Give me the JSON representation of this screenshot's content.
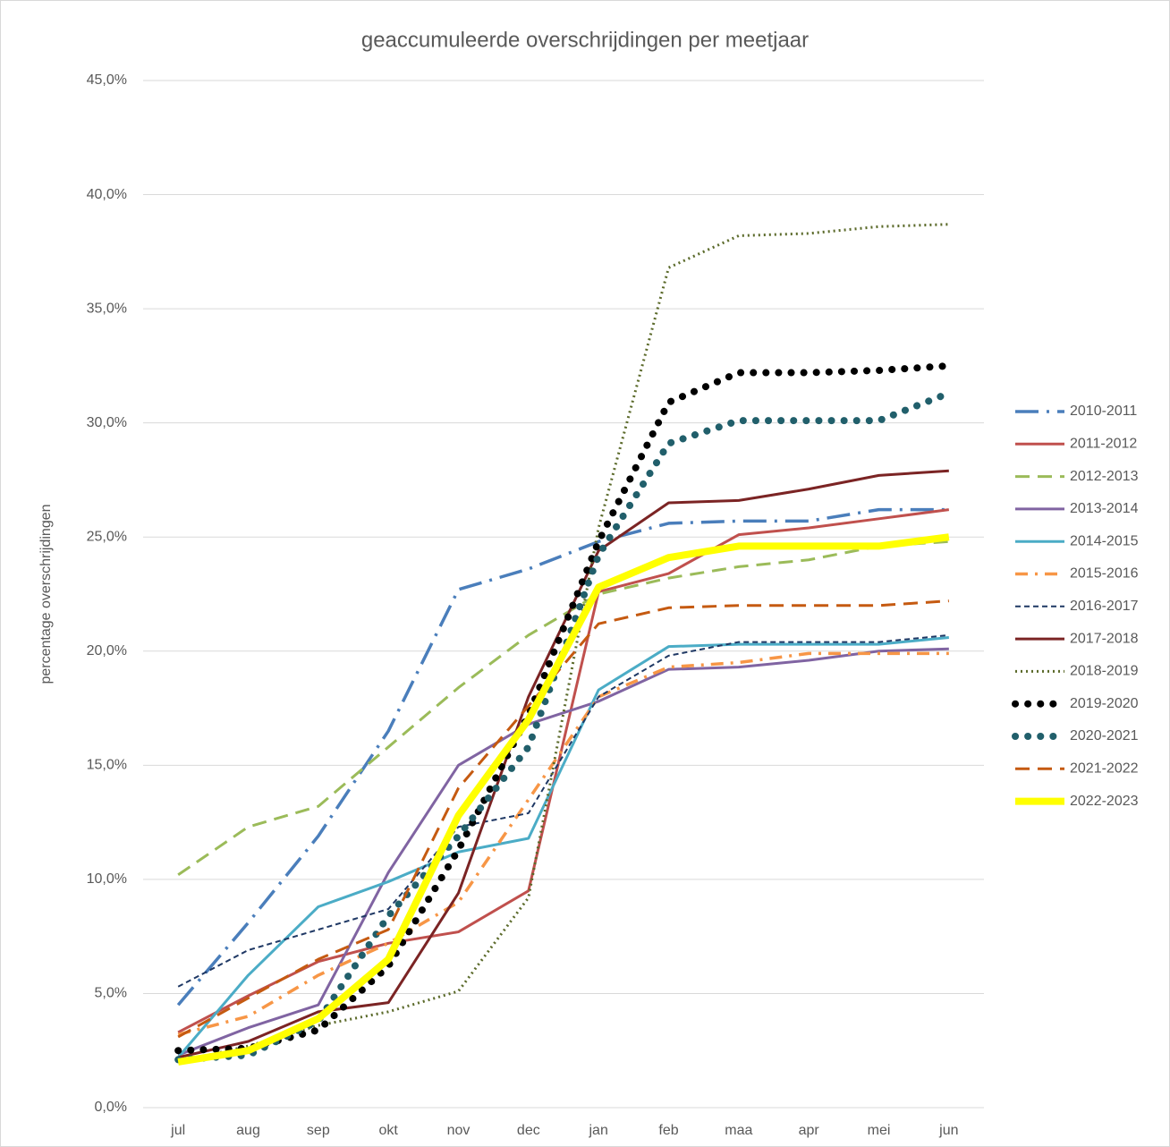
{
  "chart_data": {
    "type": "line",
    "title": "geaccumuleerde overschrijdingen per meetjaar",
    "y_label": "percentage overschrijdingen",
    "categories": [
      "jul",
      "aug",
      "sep",
      "okt",
      "nov",
      "dec",
      "jan",
      "feb",
      "maa",
      "apr",
      "mei",
      "jun"
    ],
    "ylim": [
      0,
      45
    ],
    "yticks": [
      {
        "value": 0,
        "label": "0,0%"
      },
      {
        "value": 5,
        "label": "5,0%"
      },
      {
        "value": 10,
        "label": "10,0%"
      },
      {
        "value": 15,
        "label": "15,0%"
      },
      {
        "value": 20,
        "label": "20,0%"
      },
      {
        "value": 25,
        "label": "25,0%"
      },
      {
        "value": 30,
        "label": "30,0%"
      },
      {
        "value": 35,
        "label": "35,0%"
      },
      {
        "value": 40,
        "label": "40,0%"
      },
      {
        "value": 45,
        "label": "45,0%"
      }
    ],
    "grid": true,
    "legend": "right",
    "series": [
      {
        "name": "2010-2011",
        "color": "#4a7ebb",
        "style": "longdashdot",
        "values": [
          4.5,
          8.1,
          11.9,
          16.5,
          22.7,
          23.6,
          24.8,
          25.6,
          25.7,
          25.7,
          26.2,
          26.2
        ]
      },
      {
        "name": "2011-2012",
        "color": "#c0504d",
        "style": "solid",
        "values": [
          3.3,
          4.9,
          6.4,
          7.2,
          7.7,
          9.5,
          22.6,
          23.4,
          25.1,
          25.4,
          25.8,
          26.2
        ]
      },
      {
        "name": "2012-2013",
        "color": "#9bbb59",
        "style": "dash",
        "values": [
          10.2,
          12.3,
          13.2,
          15.8,
          18.4,
          20.7,
          22.5,
          23.2,
          23.7,
          24.0,
          24.6,
          24.8
        ]
      },
      {
        "name": "2013-2014",
        "color": "#8064a2",
        "style": "solid",
        "values": [
          2.3,
          3.5,
          4.5,
          10.3,
          15.0,
          16.8,
          17.8,
          19.2,
          19.3,
          19.6,
          20.0,
          20.1
        ]
      },
      {
        "name": "2014-2015",
        "color": "#4bacc6",
        "style": "solid",
        "values": [
          2.2,
          5.8,
          8.8,
          9.9,
          11.2,
          11.8,
          18.3,
          20.2,
          20.3,
          20.3,
          20.3,
          20.6
        ]
      },
      {
        "name": "2015-2016",
        "color": "#f79646",
        "style": "dashdot",
        "values": [
          3.2,
          4.0,
          5.8,
          7.2,
          9.0,
          13.5,
          18.0,
          19.3,
          19.5,
          19.9,
          19.9,
          19.9
        ]
      },
      {
        "name": "2016-2017",
        "color": "#1f3864",
        "style": "thindash",
        "values": [
          5.3,
          6.9,
          7.8,
          8.7,
          12.3,
          12.9,
          18.0,
          19.8,
          20.4,
          20.4,
          20.4,
          20.7
        ]
      },
      {
        "name": "2017-2018",
        "color": "#7b2424",
        "style": "solid",
        "values": [
          2.2,
          2.9,
          4.2,
          4.6,
          9.4,
          18.0,
          24.4,
          26.5,
          26.6,
          27.1,
          27.7,
          27.9
        ]
      },
      {
        "name": "2018-2019",
        "color": "#5b6a2a",
        "style": "dot",
        "values": [
          2.0,
          2.7,
          3.6,
          4.2,
          5.1,
          9.2,
          25.4,
          36.8,
          38.2,
          38.3,
          38.6,
          38.7
        ]
      },
      {
        "name": "2019-2020",
        "color": "#000000",
        "style": "bigdot",
        "values": [
          2.5,
          2.6,
          3.4,
          6.2,
          11.3,
          17.2,
          24.8,
          30.9,
          32.2,
          32.2,
          32.3,
          32.5
        ]
      },
      {
        "name": "2020-2021",
        "color": "#215f6b",
        "style": "bigdot",
        "values": [
          2.1,
          2.3,
          3.8,
          8.4,
          11.9,
          15.8,
          24.2,
          29.1,
          30.1,
          30.1,
          30.1,
          31.3
        ]
      },
      {
        "name": "2021-2022",
        "color": "#c55a11",
        "style": "dash",
        "values": [
          3.1,
          4.8,
          6.5,
          7.8,
          14.0,
          17.6,
          21.2,
          21.9,
          22.0,
          22.0,
          22.0,
          22.2
        ]
      },
      {
        "name": "2022-2023",
        "color": "#ffff00",
        "style": "thick",
        "values": [
          2.0,
          2.5,
          3.9,
          6.5,
          12.8,
          17.0,
          22.8,
          24.1,
          24.6,
          24.6,
          24.6,
          25.0
        ]
      }
    ]
  }
}
